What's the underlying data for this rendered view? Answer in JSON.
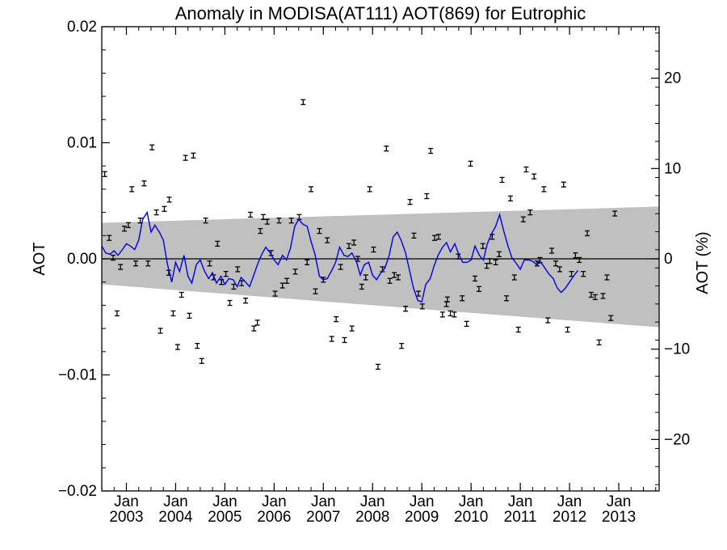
{
  "chart_data": {
    "type": "scatter",
    "title": "Anomaly in MODISA(AT111) AOT(869) for Eutrophic",
    "ylabel": "AOT",
    "y2label": "AOT (%)",
    "ylim": [
      -0.02,
      0.02
    ],
    "y2lim": [
      -25.7,
      25.7
    ],
    "xlim": [
      2002.5,
      2013.82
    ],
    "yticks": [
      {
        "value": -0.02,
        "label": "−0.02"
      },
      {
        "value": -0.01,
        "label": "−0.01"
      },
      {
        "value": 0.0,
        "label": "0.00"
      },
      {
        "value": 0.01,
        "label": "0.01"
      },
      {
        "value": 0.02,
        "label": "0.02"
      }
    ],
    "y2ticks": [
      {
        "value": -20,
        "label": "−20"
      },
      {
        "value": -10,
        "label": "−10"
      },
      {
        "value": 0,
        "label": "0"
      },
      {
        "value": 10,
        "label": "10"
      },
      {
        "value": 20,
        "label": "20"
      }
    ],
    "xticks": [
      {
        "value": 2003,
        "month": "Jan",
        "year": "2003"
      },
      {
        "value": 2004,
        "month": "Jan",
        "year": "2004"
      },
      {
        "value": 2005,
        "month": "Jan",
        "year": "2005"
      },
      {
        "value": 2006,
        "month": "Jan",
        "year": "2006"
      },
      {
        "value": 2007,
        "month": "Jan",
        "year": "2007"
      },
      {
        "value": 2008,
        "month": "Jan",
        "year": "2008"
      },
      {
        "value": 2009,
        "month": "Jan",
        "year": "2009"
      },
      {
        "value": 2010,
        "month": "Jan",
        "year": "2010"
      },
      {
        "value": 2011,
        "month": "Jan",
        "year": "2011"
      },
      {
        "value": 2012,
        "month": "Jan",
        "year": "2012"
      },
      {
        "value": 2013,
        "month": "Jan",
        "year": "2013"
      }
    ],
    "band": {
      "color": "#c0c0c0",
      "upper": [
        [
          2002.5,
          0.0031
        ],
        [
          2013.82,
          0.0045
        ]
      ],
      "lower": [
        [
          2002.5,
          -0.0022
        ],
        [
          2013.82,
          -0.0059
        ]
      ]
    },
    "zero_line": true,
    "grid": false,
    "points_color": "#000000",
    "line_color": "#0000dd",
    "points": [
      [
        2002.56,
        0.0073
      ],
      [
        2002.65,
        0.0018
      ],
      [
        2002.73,
        0.0001
      ],
      [
        2002.81,
        -0.0047
      ],
      [
        2002.88,
        -0.0007
      ],
      [
        2002.96,
        0.0026
      ],
      [
        2003.04,
        0.0029
      ],
      [
        2003.11,
        0.006
      ],
      [
        2003.19,
        -0.0004
      ],
      [
        2003.28,
        0.0033
      ],
      [
        2003.36,
        0.0065
      ],
      [
        2003.44,
        -0.0004
      ],
      [
        2003.52,
        0.0096
      ],
      [
        2003.61,
        0.004
      ],
      [
        2003.69,
        -0.0062
      ],
      [
        2003.77,
        0.0043
      ],
      [
        2003.86,
        -0.0012
      ],
      [
        2003.87,
        0.0051
      ],
      [
        2003.95,
        -0.0047
      ],
      [
        2004.04,
        -0.0076
      ],
      [
        2004.12,
        -0.0031
      ],
      [
        2004.2,
        0.0087
      ],
      [
        2004.28,
        -0.0049
      ],
      [
        2004.36,
        0.0089
      ],
      [
        2004.44,
        -0.0075
      ],
      [
        2004.53,
        -0.0088
      ],
      [
        2004.61,
        0.0033
      ],
      [
        2004.69,
        -0.0004
      ],
      [
        2004.77,
        -0.0016
      ],
      [
        2004.85,
        0.0013
      ],
      [
        2004.93,
        -0.002
      ],
      [
        2005.02,
        -0.0013
      ],
      [
        2005.1,
        -0.0038
      ],
      [
        2005.18,
        -0.0024
      ],
      [
        2005.26,
        -0.0009
      ],
      [
        2005.34,
        -0.0021
      ],
      [
        2005.42,
        -0.0036
      ],
      [
        2005.52,
        0.0038
      ],
      [
        2005.59,
        -0.006
      ],
      [
        2005.66,
        -0.0055
      ],
      [
        2005.72,
        0.0024
      ],
      [
        2005.78,
        0.0036
      ],
      [
        2005.86,
        0.0032
      ],
      [
        2005.94,
        0.0005
      ],
      [
        2006.02,
        -0.003
      ],
      [
        2006.1,
        0.0033
      ],
      [
        2006.17,
        -0.0023
      ],
      [
        2006.26,
        -0.0019
      ],
      [
        2006.35,
        0.0033
      ],
      [
        2006.43,
        -0.0011
      ],
      [
        2006.51,
        0.0036
      ],
      [
        2006.59,
        0.0135
      ],
      [
        2006.67,
        -0.0003
      ],
      [
        2006.75,
        0.006
      ],
      [
        2006.84,
        -0.0028
      ],
      [
        2006.92,
        0.0024
      ],
      [
        2007.0,
        -0.0018
      ],
      [
        2007.08,
        0.0016
      ],
      [
        2007.17,
        -0.0069
      ],
      [
        2007.26,
        -0.0052
      ],
      [
        2007.35,
        -0.0007
      ],
      [
        2007.43,
        -0.007
      ],
      [
        2007.52,
        0.0011
      ],
      [
        2007.58,
        -0.006
      ],
      [
        2007.62,
        0.0014
      ],
      [
        2007.7,
        0.0
      ],
      [
        2007.78,
        -0.0024
      ],
      [
        2007.86,
        -0.0016
      ],
      [
        2007.94,
        0.006
      ],
      [
        2008.02,
        0.0008
      ],
      [
        2008.11,
        -0.0093
      ],
      [
        2008.2,
        -0.0009
      ],
      [
        2008.28,
        0.0095
      ],
      [
        2008.35,
        -0.0019
      ],
      [
        2008.44,
        -0.0014
      ],
      [
        2008.52,
        -0.0016
      ],
      [
        2008.59,
        -0.0075
      ],
      [
        2008.67,
        -0.0043
      ],
      [
        2008.76,
        0.0049
      ],
      [
        2008.84,
        0.002
      ],
      [
        2008.93,
        -0.003
      ],
      [
        2009.01,
        -0.0041
      ],
      [
        2009.1,
        0.0054
      ],
      [
        2009.18,
        0.0093
      ],
      [
        2009.26,
        0.0018
      ],
      [
        2009.34,
        0.0019
      ],
      [
        2009.42,
        -0.0048
      ],
      [
        2009.5,
        -0.0039
      ],
      [
        2009.52,
        -0.0035
      ],
      [
        2009.58,
        -0.0047
      ],
      [
        2009.66,
        -0.0048
      ],
      [
        2009.74,
        0.0002
      ],
      [
        2009.82,
        -0.0034
      ],
      [
        2009.91,
        -0.0056
      ],
      [
        2009.99,
        0.0082
      ],
      [
        2010.08,
        -0.0017
      ],
      [
        2010.16,
        -0.0026
      ],
      [
        2010.24,
        0.0011
      ],
      [
        2010.32,
        -0.0006
      ],
      [
        2010.38,
        -0.0002
      ],
      [
        2010.43,
        0.0019
      ],
      [
        2010.5,
        -0.0003
      ],
      [
        2010.57,
        0.0004
      ],
      [
        2010.63,
        0.0068
      ],
      [
        2010.72,
        -0.0034
      ],
      [
        2010.8,
        0.0052
      ],
      [
        2010.88,
        -0.0016
      ],
      [
        2010.96,
        -0.0061
      ],
      [
        2011.06,
        0.0034
      ],
      [
        2011.12,
        0.0077
      ],
      [
        2011.2,
        0.004
      ],
      [
        2011.28,
        0.0071
      ],
      [
        2011.34,
        -0.0004
      ],
      [
        2011.4,
        -0.0001
      ],
      [
        2011.48,
        0.006
      ],
      [
        2011.56,
        -0.0053
      ],
      [
        2011.64,
        0.0007
      ],
      [
        2011.72,
        -0.0004
      ],
      [
        2011.8,
        -0.0009
      ],
      [
        2011.88,
        0.0064
      ],
      [
        2011.96,
        -0.0061
      ],
      [
        2012.04,
        -0.0013
      ],
      [
        2012.12,
        0.0003
      ],
      [
        2012.2,
        -0.0001
      ],
      [
        2012.28,
        -0.0013
      ],
      [
        2012.36,
        0.0022
      ],
      [
        2012.44,
        -0.0031
      ],
      [
        2012.52,
        -0.0033
      ],
      [
        2012.6,
        -0.0072
      ],
      [
        2012.68,
        -0.0032
      ],
      [
        2012.76,
        -0.0016
      ],
      [
        2012.84,
        -0.0051
      ],
      [
        2012.92,
        0.0039
      ]
    ],
    "line": [
      [
        2002.5,
        0.0011
      ],
      [
        2002.58,
        0.0005
      ],
      [
        2002.67,
        0.0004
      ],
      [
        2002.75,
        0.0007
      ],
      [
        2002.83,
        0.0003
      ],
      [
        2002.92,
        0.0008
      ],
      [
        2003.0,
        0.0013
      ],
      [
        2003.08,
        0.0011
      ],
      [
        2003.17,
        0.0008
      ],
      [
        2003.25,
        0.0016
      ],
      [
        2003.33,
        0.0034
      ],
      [
        2003.42,
        0.004
      ],
      [
        2003.5,
        0.0023
      ],
      [
        2003.58,
        0.0029
      ],
      [
        2003.67,
        0.0023
      ],
      [
        2003.75,
        0.0016
      ],
      [
        2003.83,
        -0.0004
      ],
      [
        2003.92,
        -0.002
      ],
      [
        2004.0,
        -0.0003
      ],
      [
        2004.08,
        -0.0011
      ],
      [
        2004.17,
        0.0003
      ],
      [
        2004.25,
        -0.0015
      ],
      [
        2004.33,
        -0.0021
      ],
      [
        2004.42,
        -0.0005
      ],
      [
        2004.5,
        -0.0001
      ],
      [
        2004.58,
        -0.001
      ],
      [
        2004.67,
        -0.0017
      ],
      [
        2004.75,
        -0.0012
      ],
      [
        2004.83,
        -0.0021
      ],
      [
        2004.92,
        -0.0015
      ],
      [
        2005.0,
        -0.0022
      ],
      [
        2005.08,
        -0.0017
      ],
      [
        2005.17,
        -0.0018
      ],
      [
        2005.25,
        -0.0024
      ],
      [
        2005.33,
        -0.0016
      ],
      [
        2005.42,
        -0.002
      ],
      [
        2005.5,
        -0.0024
      ],
      [
        2005.58,
        -0.0015
      ],
      [
        2005.67,
        -0.0004
      ],
      [
        2005.75,
        0.0004
      ],
      [
        2005.83,
        0.001
      ],
      [
        2005.92,
        0.0005
      ],
      [
        2006.0,
        -0.0001
      ],
      [
        2006.08,
        -0.0005
      ],
      [
        2006.17,
        0.0003
      ],
      [
        2006.25,
        -0.0001
      ],
      [
        2006.33,
        0.0009
      ],
      [
        2006.42,
        0.0028
      ],
      [
        2006.5,
        0.0034
      ],
      [
        2006.58,
        0.003
      ],
      [
        2006.67,
        0.0028
      ],
      [
        2006.75,
        0.0015
      ],
      [
        2006.83,
        0.0004
      ],
      [
        2006.92,
        -0.0015
      ],
      [
        2007.0,
        -0.0018
      ],
      [
        2007.08,
        -0.0017
      ],
      [
        2007.17,
        -0.001
      ],
      [
        2007.25,
        -0.0003
      ],
      [
        2007.33,
        0.001
      ],
      [
        2007.42,
        0.0003
      ],
      [
        2007.5,
        0.0002
      ],
      [
        2007.58,
        0.0005
      ],
      [
        2007.67,
        -0.0002
      ],
      [
        2007.75,
        -0.0014
      ],
      [
        2007.83,
        -0.0005
      ],
      [
        2007.92,
        -0.0003
      ],
      [
        2008.0,
        -0.0014
      ],
      [
        2008.08,
        -0.0018
      ],
      [
        2008.17,
        -0.0012
      ],
      [
        2008.25,
        -0.0008
      ],
      [
        2008.33,
        0.0002
      ],
      [
        2008.42,
        0.0019
      ],
      [
        2008.5,
        0.0023
      ],
      [
        2008.58,
        0.0016
      ],
      [
        2008.67,
        0.0005
      ],
      [
        2008.75,
        -0.001
      ],
      [
        2008.83,
        -0.0025
      ],
      [
        2008.92,
        -0.0036
      ],
      [
        2009.0,
        -0.0037
      ],
      [
        2009.08,
        -0.0022
      ],
      [
        2009.17,
        -0.0017
      ],
      [
        2009.25,
        -0.0006
      ],
      [
        2009.33,
        0.0003
      ],
      [
        2009.42,
        0.001
      ],
      [
        2009.5,
        0.0014
      ],
      [
        2009.58,
        0.0006
      ],
      [
        2009.67,
        0.0013
      ],
      [
        2009.75,
        0.0004
      ],
      [
        2009.83,
        -0.0003
      ],
      [
        2009.92,
        -0.0003
      ],
      [
        2010.0,
        -0.0001
      ],
      [
        2010.08,
        0.0011
      ],
      [
        2010.17,
        0.0003
      ],
      [
        2010.25,
        -0.0001
      ],
      [
        2010.33,
        0.0013
      ],
      [
        2010.42,
        0.0022
      ],
      [
        2010.5,
        0.0028
      ],
      [
        2010.58,
        0.0038
      ],
      [
        2010.67,
        0.0023
      ],
      [
        2010.75,
        0.0011
      ],
      [
        2010.83,
        0.0001
      ],
      [
        2010.92,
        -0.0004
      ],
      [
        2011.0,
        -0.0009
      ],
      [
        2011.08,
        -0.0001
      ],
      [
        2011.17,
        -0.0001
      ],
      [
        2011.25,
        -0.0002
      ],
      [
        2011.33,
        -0.0005
      ],
      [
        2011.42,
        -0.0003
      ],
      [
        2011.5,
        -0.0008
      ],
      [
        2011.58,
        -0.0013
      ],
      [
        2011.67,
        -0.0017
      ],
      [
        2011.75,
        -0.0025
      ],
      [
        2011.83,
        -0.0029
      ],
      [
        2011.92,
        -0.0025
      ],
      [
        2012.0,
        -0.002
      ],
      [
        2012.08,
        -0.0015
      ],
      [
        2012.17,
        -0.001
      ]
    ]
  }
}
